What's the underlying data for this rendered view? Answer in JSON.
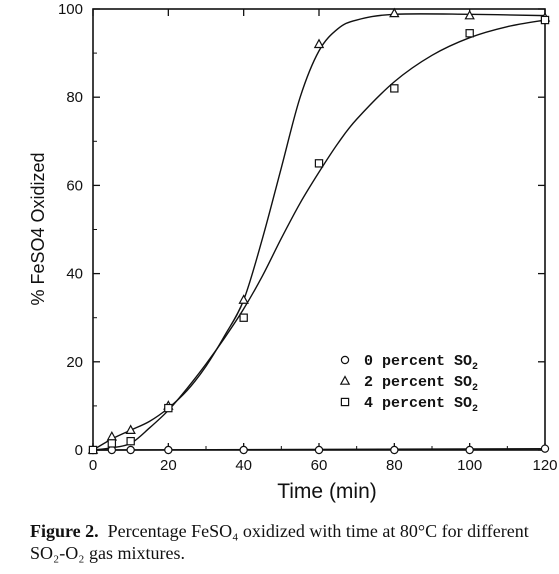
{
  "chart_data": {
    "type": "scatter",
    "xlabel": "Time (min)",
    "ylabel": "% FeSO4 Oxidized",
    "xlim": [
      0,
      120
    ],
    "ylim": [
      0,
      100
    ],
    "x_ticks": [
      0,
      20,
      40,
      60,
      80,
      100,
      120
    ],
    "y_ticks": [
      0,
      20,
      40,
      60,
      80,
      100
    ],
    "grid": false,
    "legend_position": "lower-right",
    "series": [
      {
        "name": "0 percent SO2",
        "marker": "circle",
        "points": [
          [
            0,
            0
          ],
          [
            5,
            0
          ],
          [
            10,
            0
          ],
          [
            20,
            0
          ],
          [
            40,
            0
          ],
          [
            60,
            0
          ],
          [
            80,
            0
          ],
          [
            100,
            0
          ],
          [
            120,
            0.3
          ]
        ],
        "curve": [
          [
            0,
            0
          ],
          [
            120,
            0.3
          ]
        ]
      },
      {
        "name": "2 percent SO2",
        "marker": "triangle",
        "points": [
          [
            0,
            0
          ],
          [
            5,
            3
          ],
          [
            10,
            4.5
          ],
          [
            20,
            10
          ],
          [
            40,
            34
          ],
          [
            60,
            92
          ],
          [
            80,
            99
          ],
          [
            100,
            98.5
          ],
          [
            120,
            98
          ]
        ],
        "curve": [
          [
            0,
            0
          ],
          [
            5,
            2.5
          ],
          [
            10,
            4.5
          ],
          [
            15,
            6.5
          ],
          [
            20,
            9.5
          ],
          [
            25,
            13.5
          ],
          [
            30,
            19
          ],
          [
            35,
            26
          ],
          [
            40,
            34
          ],
          [
            45,
            48
          ],
          [
            50,
            64
          ],
          [
            55,
            80
          ],
          [
            60,
            90.5
          ],
          [
            65,
            95.5
          ],
          [
            70,
            97.5
          ],
          [
            80,
            98.8
          ],
          [
            100,
            98.8
          ],
          [
            120,
            98.5
          ]
        ]
      },
      {
        "name": "4 percent SO2",
        "marker": "square",
        "points": [
          [
            0,
            0
          ],
          [
            5,
            1.5
          ],
          [
            10,
            2
          ],
          [
            20,
            9.5
          ],
          [
            40,
            30
          ],
          [
            60,
            65
          ],
          [
            80,
            82
          ],
          [
            100,
            94.5
          ],
          [
            120,
            97.5
          ]
        ],
        "curve": [
          [
            0,
            0
          ],
          [
            5,
            0.5
          ],
          [
            10,
            1.5
          ],
          [
            15,
            5
          ],
          [
            20,
            9
          ],
          [
            25,
            14
          ],
          [
            30,
            19.5
          ],
          [
            35,
            25.5
          ],
          [
            40,
            32
          ],
          [
            45,
            39.5
          ],
          [
            50,
            48
          ],
          [
            55,
            56
          ],
          [
            60,
            63
          ],
          [
            65,
            69.5
          ],
          [
            70,
            75
          ],
          [
            80,
            83.5
          ],
          [
            90,
            89.5
          ],
          [
            100,
            93.5
          ],
          [
            110,
            96
          ],
          [
            120,
            97.5
          ]
        ]
      }
    ]
  },
  "caption": {
    "label": "Figure 2.",
    "text": "Percentage FeSO₄ oxidized with time at 80°C for different SO₂-O₂ gas mixtures."
  }
}
